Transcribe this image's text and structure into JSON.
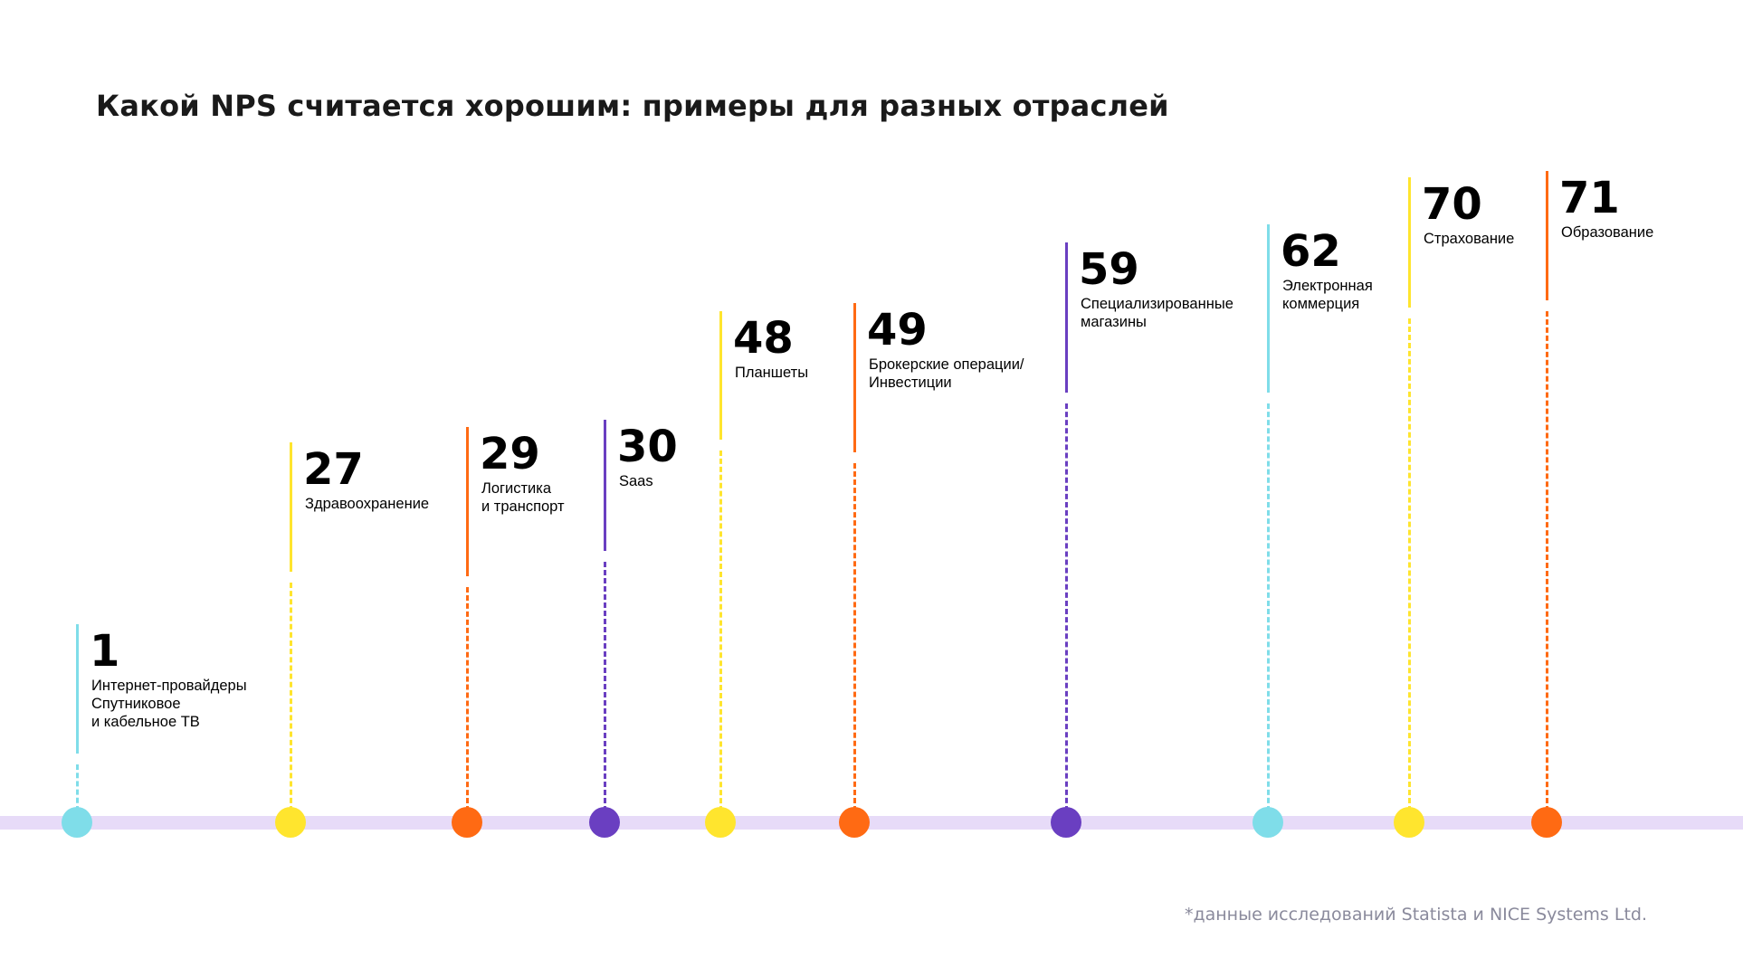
{
  "chart_data": {
    "type": "timeline",
    "title": "Какой NPS считается хорошим: примеры для разных отраслей",
    "footnote": "*данные исследований Statista и NICE Systems Ltd.",
    "colors": {
      "cyan": "#7fdde9",
      "yellow": "#ffe52e",
      "orange": "#ff6a13",
      "purple": "#6a3fc1",
      "axis": "#e7dbf8"
    },
    "items": [
      {
        "value": "1",
        "label": [
          "Интернет-провайдеры",
          "Спутниковое",
          "и кабельное ТВ"
        ],
        "color": "#7fdde9"
      },
      {
        "value": "27",
        "label": [
          "Здравоохранение"
        ],
        "color": "#ffe52e"
      },
      {
        "value": "29",
        "label": [
          "Логистика",
          "и транспорт"
        ],
        "color": "#ff6a13"
      },
      {
        "value": "30",
        "label": [
          "Saas"
        ],
        "color": "#6a3fc1"
      },
      {
        "value": "48",
        "label": [
          "Планшеты"
        ],
        "color": "#ffe52e"
      },
      {
        "value": "49",
        "label": [
          "Брокерские операции/",
          "Инвестиции"
        ],
        "color": "#ff6a13"
      },
      {
        "value": "59",
        "label": [
          "Специализированные",
          "магазины"
        ],
        "color": "#6a3fc1"
      },
      {
        "value": "62",
        "label": [
          "Электронная",
          "коммерция"
        ],
        "color": "#7fdde9"
      },
      {
        "value": "70",
        "label": [
          "Страхование"
        ],
        "color": "#ffe52e"
      },
      {
        "value": "71",
        "label": [
          "Образование"
        ],
        "color": "#ff6a13"
      }
    ]
  }
}
